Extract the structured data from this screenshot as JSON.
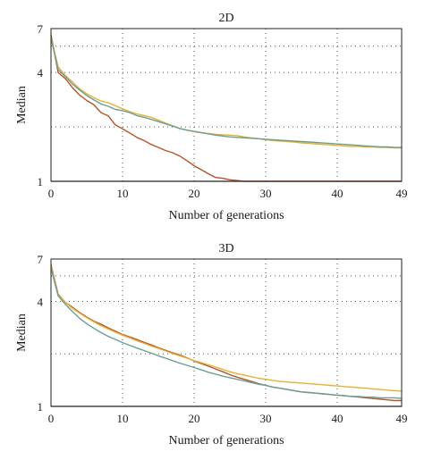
{
  "colors": {
    "red": "#b5532c",
    "yellow": "#e8b030",
    "teal": "#6a9e94"
  },
  "chart_data": [
    {
      "type": "line",
      "title": "2D",
      "xlabel": "Number of generations",
      "ylabel": "Median",
      "xlim": [
        0,
        49
      ],
      "ylim": [
        1,
        7
      ],
      "y_scale": "log",
      "xticks": [
        "0",
        "10",
        "20",
        "30",
        "40",
        "49"
      ],
      "yticks": [
        "1",
        "4",
        "7"
      ],
      "grid": true,
      "reference_line_y": 1,
      "x": [
        0,
        1,
        2,
        3,
        4,
        5,
        6,
        7,
        8,
        9,
        10,
        11,
        12,
        13,
        14,
        15,
        16,
        17,
        18,
        19,
        20,
        21,
        22,
        23,
        24,
        25,
        26,
        27,
        28,
        29,
        30,
        31,
        32,
        33,
        34,
        35,
        36,
        37,
        38,
        39,
        40,
        41,
        42,
        43,
        44,
        45,
        46,
        47,
        48,
        49
      ],
      "series": [
        {
          "color": "red",
          "values": [
            6.5,
            4.0,
            3.7,
            3.3,
            3.0,
            2.8,
            2.65,
            2.4,
            2.3,
            2.05,
            1.95,
            1.85,
            1.75,
            1.68,
            1.6,
            1.54,
            1.48,
            1.44,
            1.38,
            1.3,
            1.22,
            1.16,
            1.1,
            1.05,
            1.04,
            1.02,
            1.01,
            1.0,
            1.0,
            1.0,
            1.0,
            1.0,
            1.0,
            1.0,
            1.0,
            1.0,
            1.0,
            1.0,
            1.0,
            1.0,
            1.0,
            1.0,
            1.0,
            1.0,
            1.0,
            1.0,
            1.0,
            1.0,
            1.0,
            1.0
          ]
        },
        {
          "color": "yellow",
          "values": [
            6.3,
            4.3,
            3.85,
            3.55,
            3.25,
            3.05,
            2.9,
            2.78,
            2.72,
            2.62,
            2.52,
            2.43,
            2.36,
            2.31,
            2.26,
            2.18,
            2.1,
            2.03,
            1.96,
            1.92,
            1.88,
            1.86,
            1.84,
            1.82,
            1.81,
            1.8,
            1.79,
            1.76,
            1.74,
            1.72,
            1.7,
            1.68,
            1.67,
            1.66,
            1.65,
            1.63,
            1.62,
            1.61,
            1.6,
            1.59,
            1.58,
            1.57,
            1.56,
            1.56,
            1.55,
            1.55,
            1.54,
            1.54,
            1.53,
            1.53
          ]
        },
        {
          "color": "teal",
          "values": [
            6.2,
            4.15,
            3.8,
            3.45,
            3.2,
            2.98,
            2.82,
            2.68,
            2.6,
            2.5,
            2.46,
            2.4,
            2.31,
            2.26,
            2.2,
            2.14,
            2.08,
            2.02,
            1.96,
            1.92,
            1.89,
            1.86,
            1.83,
            1.8,
            1.78,
            1.76,
            1.75,
            1.74,
            1.73,
            1.72,
            1.71,
            1.7,
            1.69,
            1.68,
            1.67,
            1.66,
            1.65,
            1.64,
            1.63,
            1.62,
            1.61,
            1.6,
            1.59,
            1.58,
            1.57,
            1.56,
            1.55,
            1.55,
            1.54,
            1.54
          ]
        }
      ]
    },
    {
      "type": "line",
      "title": "3D",
      "xlabel": "Number of generations",
      "ylabel": "Median",
      "xlim": [
        0,
        49
      ],
      "ylim": [
        1,
        7
      ],
      "y_scale": "log",
      "xticks": [
        "0",
        "10",
        "20",
        "30",
        "40",
        "49"
      ],
      "yticks": [
        "1",
        "4",
        "7"
      ],
      "grid": true,
      "reference_line_y": 1,
      "x": [
        0,
        1,
        2,
        3,
        4,
        5,
        6,
        7,
        8,
        9,
        10,
        11,
        12,
        13,
        14,
        15,
        16,
        17,
        18,
        19,
        20,
        21,
        22,
        23,
        24,
        25,
        26,
        27,
        28,
        29,
        30,
        31,
        32,
        33,
        34,
        35,
        36,
        37,
        38,
        39,
        40,
        41,
        42,
        43,
        44,
        45,
        46,
        47,
        48,
        49
      ],
      "series": [
        {
          "color": "red",
          "values": [
            6.5,
            4.4,
            3.95,
            3.7,
            3.45,
            3.25,
            3.08,
            2.96,
            2.82,
            2.7,
            2.58,
            2.5,
            2.42,
            2.33,
            2.25,
            2.17,
            2.1,
            2.03,
            1.97,
            1.9,
            1.82,
            1.76,
            1.7,
            1.64,
            1.58,
            1.52,
            1.47,
            1.43,
            1.39,
            1.35,
            1.32,
            1.29,
            1.27,
            1.25,
            1.23,
            1.21,
            1.2,
            1.19,
            1.18,
            1.17,
            1.16,
            1.15,
            1.14,
            1.13,
            1.12,
            1.11,
            1.1,
            1.09,
            1.08,
            1.08
          ]
        },
        {
          "color": "yellow",
          "values": [
            6.4,
            4.35,
            3.95,
            3.65,
            3.42,
            3.22,
            3.05,
            2.9,
            2.78,
            2.66,
            2.56,
            2.47,
            2.38,
            2.3,
            2.22,
            2.15,
            2.08,
            2.01,
            1.95,
            1.89,
            1.83,
            1.78,
            1.73,
            1.68,
            1.63,
            1.58,
            1.54,
            1.51,
            1.48,
            1.45,
            1.43,
            1.41,
            1.39,
            1.38,
            1.37,
            1.36,
            1.35,
            1.34,
            1.33,
            1.32,
            1.31,
            1.3,
            1.29,
            1.28,
            1.27,
            1.26,
            1.25,
            1.24,
            1.23,
            1.22
          ]
        },
        {
          "color": "teal",
          "values": [
            6.2,
            4.3,
            3.85,
            3.5,
            3.2,
            2.98,
            2.8,
            2.65,
            2.52,
            2.42,
            2.32,
            2.24,
            2.16,
            2.09,
            2.02,
            1.95,
            1.89,
            1.83,
            1.77,
            1.72,
            1.67,
            1.62,
            1.57,
            1.53,
            1.49,
            1.46,
            1.43,
            1.4,
            1.37,
            1.34,
            1.32,
            1.29,
            1.27,
            1.25,
            1.23,
            1.21,
            1.2,
            1.19,
            1.18,
            1.17,
            1.16,
            1.15,
            1.14,
            1.14,
            1.13,
            1.13,
            1.12,
            1.12,
            1.12,
            1.11
          ]
        }
      ]
    }
  ]
}
